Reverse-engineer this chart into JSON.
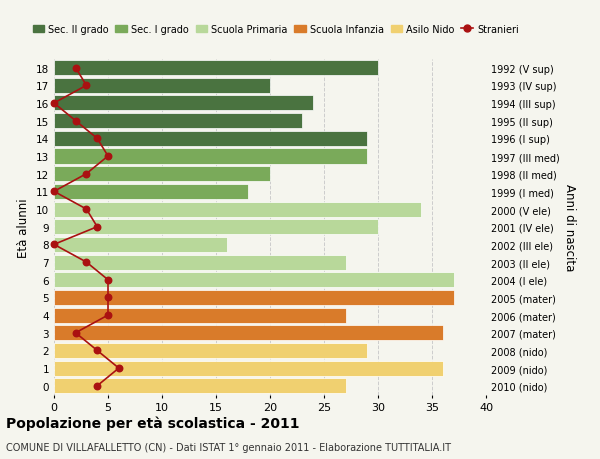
{
  "ages": [
    18,
    17,
    16,
    15,
    14,
    13,
    12,
    11,
    10,
    9,
    8,
    7,
    6,
    5,
    4,
    3,
    2,
    1,
    0
  ],
  "anni_nascita": [
    "1992 (V sup)",
    "1993 (IV sup)",
    "1994 (III sup)",
    "1995 (II sup)",
    "1996 (I sup)",
    "1997 (III med)",
    "1998 (II med)",
    "1999 (I med)",
    "2000 (V ele)",
    "2001 (IV ele)",
    "2002 (III ele)",
    "2003 (II ele)",
    "2004 (I ele)",
    "2005 (mater)",
    "2006 (mater)",
    "2007 (mater)",
    "2008 (nido)",
    "2009 (nido)",
    "2010 (nido)"
  ],
  "bar_values": [
    30,
    20,
    24,
    23,
    29,
    29,
    20,
    18,
    34,
    30,
    16,
    27,
    37,
    37,
    27,
    36,
    29,
    36,
    27
  ],
  "bar_colors": [
    "#4a7340",
    "#4a7340",
    "#4a7340",
    "#4a7340",
    "#4a7340",
    "#7aaa5a",
    "#7aaa5a",
    "#7aaa5a",
    "#b8d89a",
    "#b8d89a",
    "#b8d89a",
    "#b8d89a",
    "#b8d89a",
    "#d97b2a",
    "#d97b2a",
    "#d97b2a",
    "#f0d070",
    "#f0d070",
    "#f0d070"
  ],
  "stranieri_x": [
    2,
    3,
    0,
    2,
    4,
    5,
    3,
    0,
    3,
    4,
    0,
    3,
    5,
    5,
    5,
    2,
    4,
    6,
    4
  ],
  "stranieri_color": "#aa1111",
  "xlim": [
    0,
    40
  ],
  "ylabel": "Età alunni",
  "right_ylabel": "Anni di nascita",
  "title": "Popolazione per età scolastica - 2011",
  "subtitle": "COMUNE DI VILLAFALLETTO (CN) - Dati ISTAT 1° gennaio 2011 - Elaborazione TUTTITALIA.IT",
  "legend_labels": [
    "Sec. II grado",
    "Sec. I grado",
    "Scuola Primaria",
    "Scuola Infanzia",
    "Asilo Nido",
    "Stranieri"
  ],
  "legend_colors": [
    "#4a7340",
    "#7aaa5a",
    "#b8d89a",
    "#d97b2a",
    "#f0d070",
    "#aa1111"
  ],
  "bg_color": "#f5f5ee",
  "grid_color": "#cccccc",
  "xticks": [
    0,
    5,
    10,
    15,
    20,
    25,
    30,
    35,
    40
  ]
}
